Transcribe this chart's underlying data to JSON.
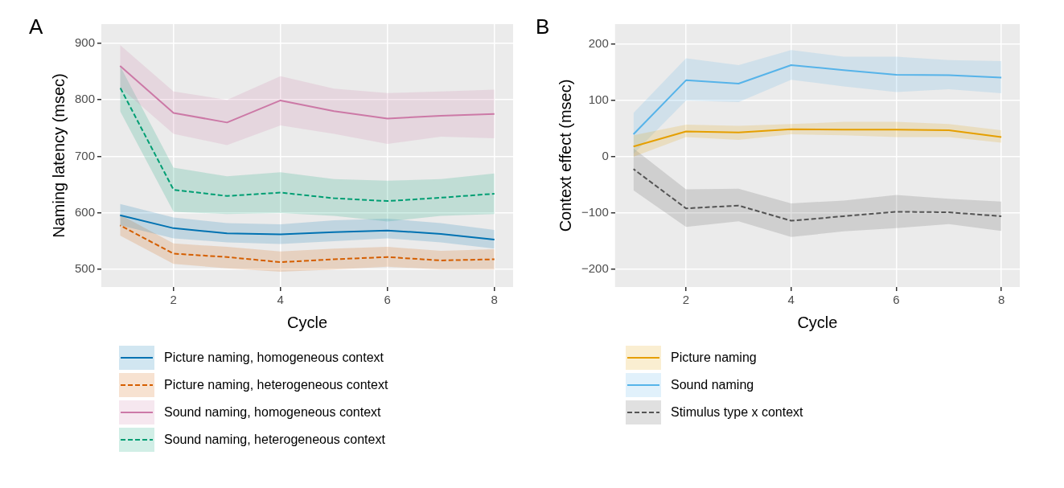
{
  "chart_data": [
    {
      "type": "line",
      "annotations": [
        "A"
      ],
      "xlabel": "Cycle",
      "ylabel": "Naming latency (msec)",
      "x": [
        1,
        2,
        3,
        4,
        5,
        6,
        7,
        8
      ],
      "xlim": [
        0.65,
        8.35
      ],
      "xticks": [
        2,
        4,
        6,
        8
      ],
      "ylim": [
        469,
        934
      ],
      "yticks": [
        500,
        600,
        700,
        800,
        900
      ],
      "grid": true,
      "legend": "bottom",
      "marker": "none",
      "series": [
        {
          "name": "Picture naming, homogeneous context",
          "color": "#0072b2",
          "line_style": "solid",
          "values": [
            596,
            573,
            564,
            562,
            566,
            569,
            563,
            553
          ],
          "lower": [
            578,
            555,
            548,
            545,
            550,
            555,
            548,
            537
          ],
          "upper": [
            616,
            592,
            582,
            580,
            587,
            590,
            582,
            570
          ]
        },
        {
          "name": "Picture naming, heterogeneous context",
          "color": "#d55e00",
          "line_style": "dashed",
          "values": [
            578,
            528,
            522,
            513,
            518,
            522,
            516,
            518
          ],
          "lower": [
            560,
            510,
            502,
            496,
            500,
            505,
            500,
            500
          ],
          "upper": [
            597,
            546,
            540,
            532,
            537,
            540,
            533,
            536
          ]
        },
        {
          "name": "Sound naming, homogeneous context",
          "color": "#cc79a7",
          "line_style": "solid",
          "values": [
            860,
            777,
            760,
            799,
            780,
            767,
            772,
            775
          ],
          "lower": [
            822,
            740,
            720,
            755,
            740,
            722,
            735,
            732
          ],
          "upper": [
            897,
            815,
            800,
            842,
            820,
            812,
            815,
            818
          ]
        },
        {
          "name": "Sound naming, heterogeneous context",
          "color": "#009e73",
          "line_style": "dashed",
          "values": [
            822,
            641,
            630,
            636,
            626,
            621,
            627,
            634
          ],
          "lower": [
            780,
            602,
            598,
            600,
            595,
            585,
            595,
            598
          ],
          "upper": [
            860,
            680,
            665,
            672,
            660,
            657,
            660,
            670
          ]
        }
      ]
    },
    {
      "type": "line",
      "annotations": [
        "B"
      ],
      "xlabel": "Cycle",
      "ylabel": "Context effect (msec)",
      "x": [
        1,
        2,
        3,
        4,
        5,
        6,
        7,
        8
      ],
      "xlim": [
        0.65,
        8.35
      ],
      "xticks": [
        2,
        4,
        6,
        8
      ],
      "ylim": [
        -232,
        236
      ],
      "yticks": [
        {
          "value": -200,
          "label": "−200"
        },
        {
          "value": -100,
          "label": "−100"
        },
        0,
        100,
        200
      ],
      "grid": true,
      "legend": "bottom",
      "marker": "none",
      "series": [
        {
          "name": "Picture naming",
          "color": "#e69f00",
          "line_style": "solid",
          "values": [
            18,
            45,
            43,
            49,
            48,
            48,
            47,
            35
          ],
          "lower": [
            0,
            35,
            30,
            40,
            38,
            35,
            35,
            25
          ],
          "upper": [
            38,
            57,
            55,
            58,
            62,
            62,
            58,
            47
          ]
        },
        {
          "name": "Sound naming",
          "color": "#56b4e9",
          "line_style": "solid",
          "values": [
            40,
            136,
            130,
            163,
            154,
            146,
            145,
            141
          ],
          "lower": [
            5,
            100,
            97,
            137,
            125,
            115,
            120,
            113
          ],
          "upper": [
            78,
            175,
            163,
            190,
            178,
            178,
            172,
            170
          ]
        },
        {
          "name": "Stimulus type x context",
          "color": "#555555",
          "line_style": "dashed",
          "values": [
            -22,
            -92,
            -87,
            -114,
            -106,
            -98,
            -99,
            -106
          ],
          "lower": [
            -60,
            -125,
            -115,
            -143,
            -133,
            -127,
            -120,
            -132
          ],
          "upper": [
            15,
            -58,
            -57,
            -83,
            -78,
            -68,
            -75,
            -80
          ]
        }
      ]
    }
  ]
}
